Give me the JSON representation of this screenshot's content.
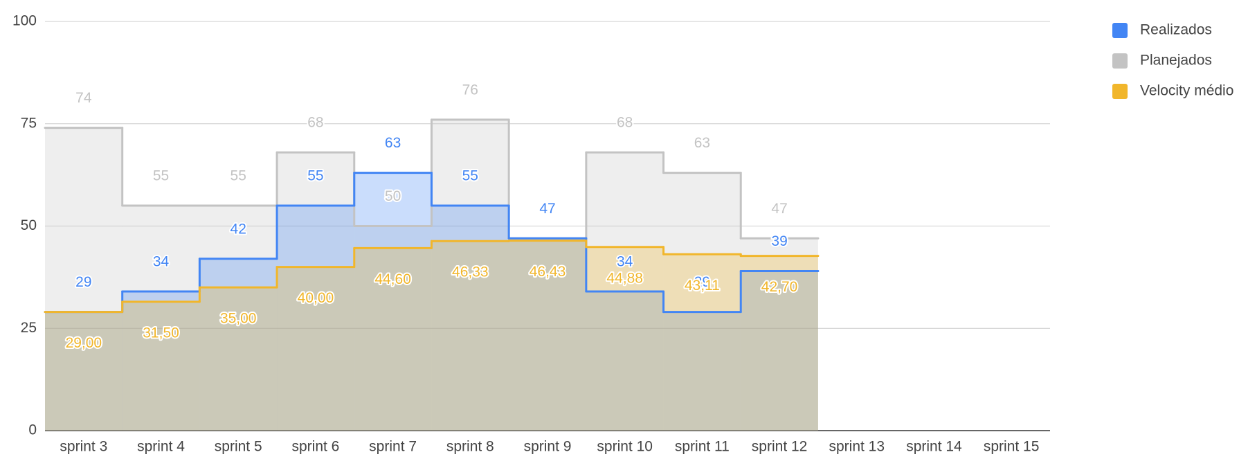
{
  "chart_data": {
    "type": "stepped-area",
    "categories": [
      "sprint 3",
      "sprint 4",
      "sprint 5",
      "sprint 6",
      "sprint 7",
      "sprint 8",
      "sprint 9",
      "sprint 10",
      "sprint 11",
      "sprint 12",
      "sprint 13",
      "sprint 14",
      "sprint 15"
    ],
    "series": [
      {
        "name": "Realizados",
        "color": "#4285f4",
        "values": [
          29,
          34,
          42,
          55,
          63,
          55,
          47,
          34,
          29,
          39,
          null,
          null,
          null
        ]
      },
      {
        "name": "Planejados",
        "color": "#c3c3c3",
        "values": [
          74,
          55,
          55,
          68,
          50,
          76,
          47,
          68,
          63,
          47,
          null,
          null,
          null
        ]
      },
      {
        "name": "Velocity médio",
        "color": "#f1b62b",
        "values": [
          29.0,
          31.5,
          35.0,
          40.0,
          44.6,
          46.33,
          46.43,
          44.88,
          43.11,
          42.7,
          null,
          null,
          null
        ],
        "value_labels": [
          "29,00",
          "31,50",
          "35,00",
          "40,00",
          "44,60",
          "46,33",
          "46,43",
          "44,88",
          "43,11",
          "42,70",
          null,
          null,
          null
        ]
      }
    ],
    "ylim": [
      0,
      100
    ],
    "yticks": [
      0,
      25,
      50,
      75,
      100
    ],
    "grid": true,
    "legend": "right"
  }
}
